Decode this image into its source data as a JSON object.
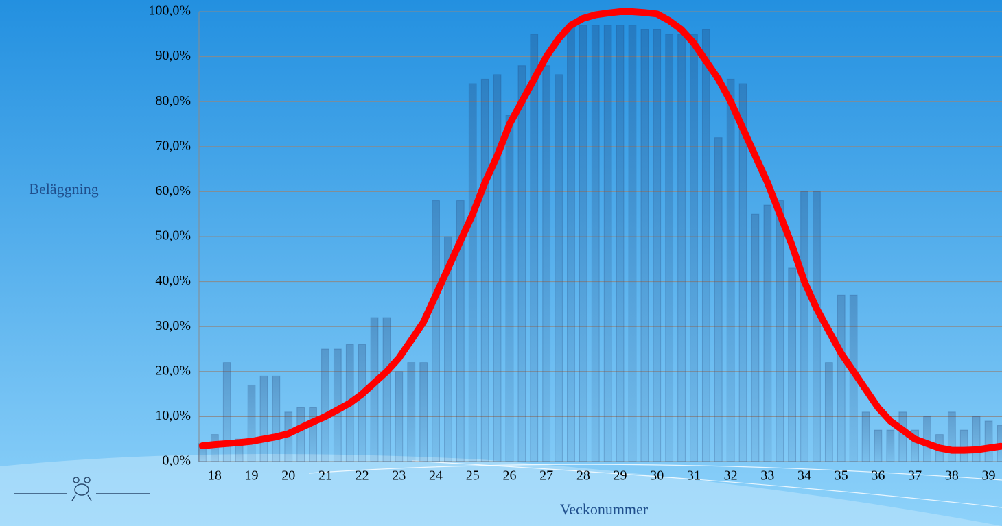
{
  "chart_data": {
    "type": "bar",
    "y_label": "Beläggning",
    "x_label": "Veckonummer",
    "categories": [
      null,
      "18",
      null,
      null,
      "19",
      null,
      null,
      "20",
      null,
      null,
      "21",
      null,
      null,
      "22",
      null,
      null,
      "23",
      null,
      null,
      "24",
      null,
      null,
      "25",
      null,
      null,
      "26",
      null,
      null,
      "27",
      null,
      null,
      "28",
      null,
      null,
      "29",
      null,
      null,
      "30",
      null,
      null,
      "31",
      null,
      null,
      "32",
      null,
      null,
      "33",
      null,
      null,
      "34",
      null,
      null,
      "35",
      null,
      null,
      "36",
      null,
      null,
      "37",
      null,
      null,
      "38",
      null,
      null,
      "39",
      null
    ],
    "series": [
      {
        "type": "bar",
        "color": "#1e3c6e",
        "values": [
          4,
          6,
          22,
          5,
          17,
          19,
          19,
          11,
          12,
          12,
          25,
          25,
          26,
          26,
          32,
          32,
          20,
          22,
          22,
          58,
          50,
          58,
          84,
          85,
          86,
          77,
          88,
          95,
          88,
          86,
          97,
          97,
          97,
          97,
          97,
          97,
          96,
          96,
          95,
          95,
          95,
          96,
          72,
          85,
          84,
          55,
          57,
          58,
          43,
          60,
          60,
          22,
          37,
          37,
          11,
          7,
          7,
          11,
          7,
          10,
          6,
          11,
          7,
          10,
          9,
          8
        ]
      },
      {
        "type": "line",
        "color": "#ff0000",
        "values": [
          3.5,
          3.8,
          4.0,
          4.2,
          4.5,
          5.0,
          5.5,
          6.2,
          7.5,
          8.8,
          10,
          11.5,
          13,
          15,
          17.5,
          20,
          23,
          27,
          31,
          37,
          43,
          49,
          55,
          62,
          68,
          75,
          80,
          85,
          90,
          94,
          97,
          98.5,
          99.3,
          99.7,
          100,
          100,
          99.8,
          99.5,
          98,
          96,
          93,
          89,
          85,
          80,
          74,
          68,
          62,
          55,
          48,
          40,
          34,
          29,
          24,
          20,
          16,
          12,
          9,
          7,
          5,
          4,
          3,
          2.5,
          2.5,
          2.6,
          3,
          3.4
        ]
      }
    ],
    "ylim": [
      0,
      100
    ],
    "yticks": [
      {
        "value": 0,
        "label": "0,0%"
      },
      {
        "value": 10,
        "label": "10,0%"
      },
      {
        "value": 20,
        "label": "20,0%"
      },
      {
        "value": 30,
        "label": "30,0%"
      },
      {
        "value": 40,
        "label": "40,0%"
      },
      {
        "value": 50,
        "label": "50,0%"
      },
      {
        "value": 60,
        "label": "60,0%"
      },
      {
        "value": 70,
        "label": "70,0%"
      },
      {
        "value": 80,
        "label": "80,0%"
      },
      {
        "value": 90,
        "label": "90,0%"
      },
      {
        "value": 100,
        "label": "100,0%"
      }
    ],
    "grid": true
  }
}
